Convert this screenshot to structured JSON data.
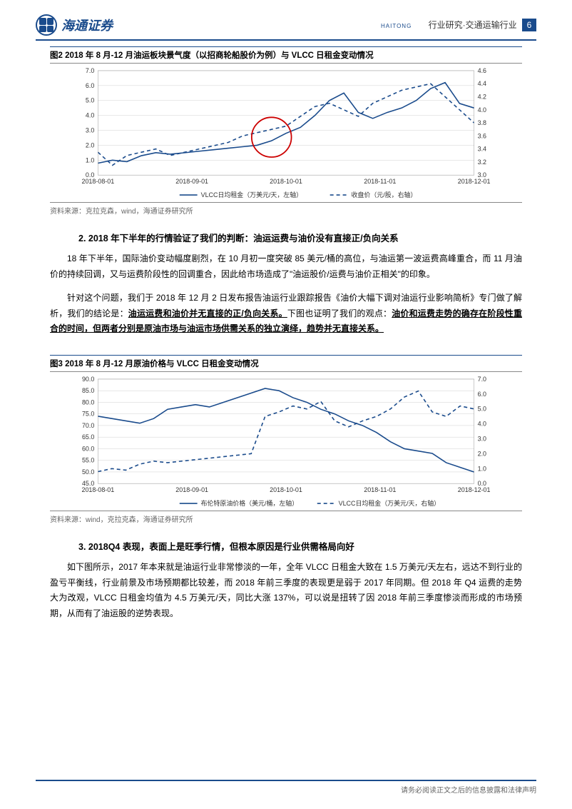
{
  "header": {
    "company_cn": "海通证券",
    "company_en": "HAITONG",
    "category": "行业研究·交通运输行业",
    "page": "6"
  },
  "figure2": {
    "title": "图2  2018 年 8 月-12 月油运板块景气度（以招商轮船股价为例）与 VLCC 日租金变动情况",
    "source": "资料来源：克拉克森，wind，海通证券研究所",
    "type": "line",
    "x_labels": [
      "2018-08-01",
      "2018-09-01",
      "2018-10-01",
      "2018-11-01",
      "2018-12-01"
    ],
    "left_axis": {
      "min": 0.0,
      "max": 7.0,
      "ticks": [
        0.0,
        1.0,
        2.0,
        3.0,
        4.0,
        5.0,
        6.0,
        7.0
      ]
    },
    "right_axis": {
      "min": 3.0,
      "max": 4.6,
      "ticks": [
        3.0,
        3.2,
        3.4,
        3.6,
        3.8,
        4.0,
        4.2,
        4.4,
        4.6
      ]
    },
    "series": [
      {
        "name": "VLCC日均租金（万美元/天，左轴）",
        "style": "solid",
        "color": "#1a4b8c",
        "data": [
          0.8,
          1.0,
          0.9,
          1.3,
          1.5,
          1.4,
          1.5,
          1.6,
          1.7,
          1.8,
          1.9,
          2.0,
          2.3,
          2.8,
          3.2,
          4.0,
          5.0,
          5.5,
          4.2,
          3.8,
          4.2,
          4.5,
          5.0,
          5.8,
          6.2,
          4.8,
          4.5
        ]
      },
      {
        "name": "收盘价（元/股，右轴）",
        "style": "dashed",
        "color": "#1a4b8c",
        "data": [
          3.35,
          3.15,
          3.3,
          3.35,
          3.4,
          3.3,
          3.35,
          3.4,
          3.45,
          3.5,
          3.6,
          3.65,
          3.7,
          3.75,
          3.9,
          4.05,
          4.1,
          4.0,
          3.9,
          4.1,
          4.2,
          4.3,
          4.35,
          4.4,
          4.2,
          4.0,
          3.8
        ]
      }
    ],
    "circle_annotation": {
      "x_index": 12,
      "color": "#cc0000",
      "radius": 28
    },
    "legend_position": "bottom"
  },
  "section2": {
    "title": "2. 2018 年下半年的行情验证了我们的判断：油运运费与油价没有直接正/负向关系",
    "p1": "18 年下半年，国际油价变动幅度剧烈，在 10 月初一度突破 85 美元/桶的高位，与油运第一波运费高峰重合，而 11 月油价的持续回调，又与运费阶段性的回调重合，因此给市场造成了\"油运股价/运费与油价正相关\"的印象。",
    "p2a": "针对这个问题，我们于 2018 年 12 月 2 日发布报告油运行业跟踪报告《油价大幅下调对油运行业影响简析》专门做了解析，我们的结论是：",
    "p2b": "油运运费和油价并无直接的正/负向关系。",
    "p2c": "下图也证明了我们的观点：",
    "p2d": "油价和运费走势的确存在阶段性重合的时间，但两者分别是原油市场与油运市场供需关系的独立演绎，趋势并无直接关系。"
  },
  "figure3": {
    "title": "图3  2018 年 8 月-12 月原油价格与 VLCC 日租金变动情况",
    "source": "资料来源：wind，克拉克森，海通证券研究所",
    "type": "line",
    "x_labels": [
      "2018-08-01",
      "2018-09-01",
      "2018-10-01",
      "2018-11-01",
      "2018-12-01"
    ],
    "left_axis": {
      "min": 45.0,
      "max": 90.0,
      "ticks": [
        45.0,
        50.0,
        55.0,
        60.0,
        65.0,
        70.0,
        75.0,
        80.0,
        85.0,
        90.0
      ]
    },
    "right_axis": {
      "min": 0.0,
      "max": 7.0,
      "ticks": [
        0.0,
        1.0,
        2.0,
        3.0,
        4.0,
        5.0,
        6.0,
        7.0
      ]
    },
    "series": [
      {
        "name": "布伦特原油价格（美元/桶，左轴）",
        "style": "solid",
        "color": "#1a4b8c",
        "data": [
          74,
          73,
          72,
          71,
          73,
          77,
          78,
          79,
          78,
          80,
          82,
          84,
          86,
          85,
          82,
          80,
          77,
          75,
          72,
          70,
          67,
          63,
          60,
          59,
          58,
          54,
          52,
          50
        ]
      },
      {
        "name": "VLCC日均租金（万美元/天，右轴）",
        "style": "dashed",
        "color": "#1a4b8c",
        "data": [
          0.8,
          1.0,
          0.9,
          1.3,
          1.5,
          1.4,
          1.5,
          1.6,
          1.7,
          1.8,
          1.9,
          2.0,
          4.5,
          4.8,
          5.2,
          5.0,
          5.5,
          4.2,
          3.8,
          4.2,
          4.5,
          5.0,
          5.8,
          6.2,
          4.8,
          4.5,
          5.2,
          5.0
        ]
      }
    ],
    "legend_position": "bottom"
  },
  "section3": {
    "title": "3. 2018Q4 表现，表面上是旺季行情，但根本原因是行业供需格局向好",
    "p1": "如下图所示，2017 年本来就是油运行业非常惨淡的一年，全年 VLCC 日租金大致在 1.5 万美元/天左右，远达不到行业的盈亏平衡线，行业前景及市场预期都比较差，而 2018 年前三季度的表现更是弱于 2017 年同期。但 2018 年 Q4 运费的走势大为改观，VLCC 日租金均值为 4.5 万美元/天，同比大涨 137%，可以说是扭转了因 2018 年前三季度惨淡而形成的市场预期，从而有了油运股的逆势表现。"
  },
  "footer": "请务必阅读正文之后的信息披露和法律声明",
  "colors": {
    "brand": "#1a4b8c",
    "grid": "#d0d0d0",
    "annotation": "#cc0000",
    "text": "#333333"
  }
}
